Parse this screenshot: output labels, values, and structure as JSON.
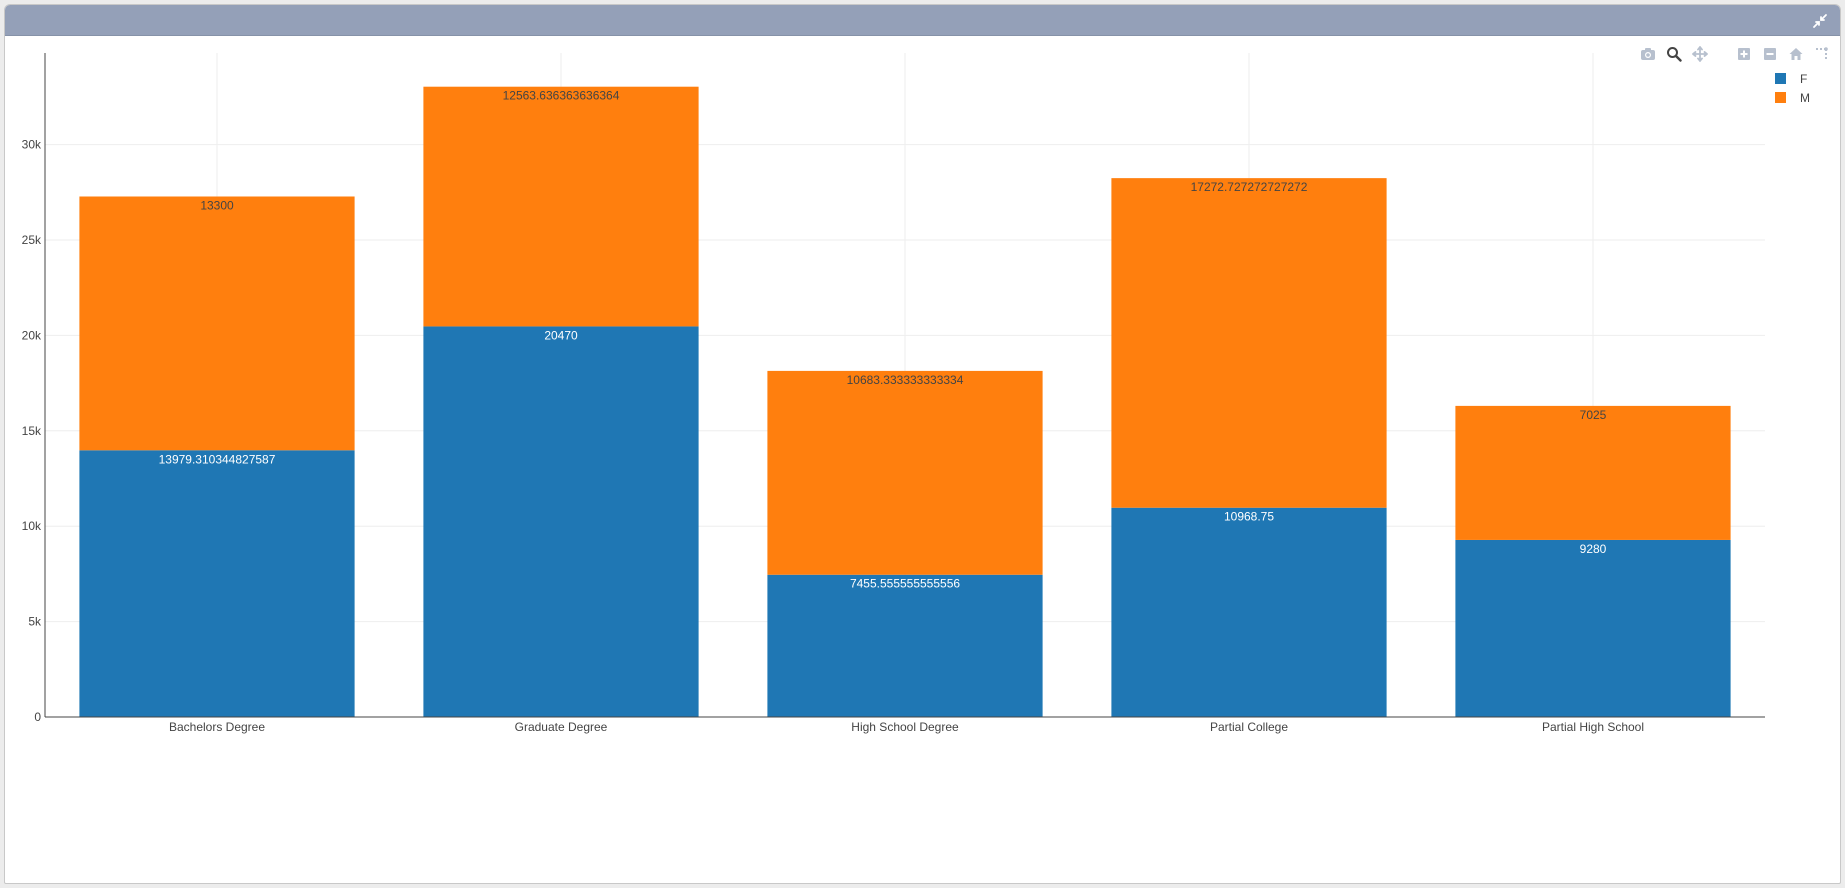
{
  "colors": {
    "F": "#1f77b4",
    "M": "#ff7f0e",
    "titlebar": "#94a0b8"
  },
  "toolbar": {
    "icons": [
      "camera-icon",
      "zoom-icon",
      "pan-icon",
      "zoom-in-icon",
      "zoom-out-icon",
      "home-icon",
      "spikelines-icon"
    ],
    "collapse_icon": "collapse-icon"
  },
  "legend": {
    "items": [
      {
        "label": "F",
        "color": "#1f77b4"
      },
      {
        "label": "M",
        "color": "#ff7f0e"
      }
    ]
  },
  "chart_data": {
    "type": "bar",
    "barmode": "stack",
    "categories": [
      "Bachelors Degree",
      "Graduate Degree",
      "High School Degree",
      "Partial College",
      "Partial High School"
    ],
    "series": [
      {
        "name": "F",
        "color": "#1f77b4",
        "values": [
          13979.310344827587,
          20470,
          7455.555555555556,
          10968.75,
          9280
        ],
        "labels": [
          "13979.310344827587",
          "20470",
          "7455.555555555556",
          "10968.75",
          "9280"
        ]
      },
      {
        "name": "M",
        "color": "#ff7f0e",
        "values": [
          13300,
          12563.636363636364,
          10683.333333333334,
          17272.727272727272,
          7025
        ],
        "labels": [
          "13300",
          "12563.636363636364",
          "10683.333333333334",
          "17272.727272727272",
          "7025"
        ]
      }
    ],
    "yticks": [
      0,
      5000,
      10000,
      15000,
      20000,
      25000,
      30000
    ],
    "ytick_labels": [
      "0",
      "5k",
      "10k",
      "15k",
      "20k",
      "25k",
      "30k"
    ],
    "ylim": [
      0,
      34800
    ],
    "grid": true,
    "legend_position": "top-right"
  }
}
